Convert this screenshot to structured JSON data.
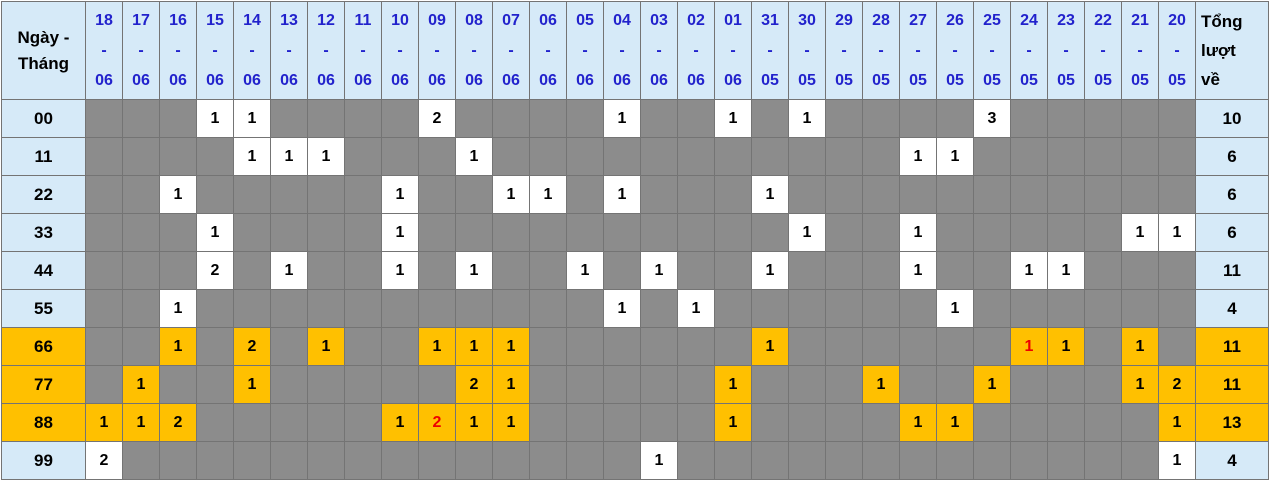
{
  "chart_data": {
    "type": "table",
    "description": "Lottery pair-frequency matrix: occurrences of double numbers 00-99 per date, with red highlighted special hits and per-row totals",
    "corner_label_lines": [
      "Ngày -",
      "Tháng"
    ],
    "total_label_lines": [
      "Tổng",
      "lượt",
      "về"
    ],
    "columns": [
      "18-06",
      "17-06",
      "16-06",
      "15-06",
      "14-06",
      "13-06",
      "12-06",
      "11-06",
      "10-06",
      "09-06",
      "08-06",
      "07-06",
      "06-06",
      "05-06",
      "04-06",
      "03-06",
      "02-06",
      "01-06",
      "31-05",
      "30-05",
      "29-05",
      "28-05",
      "27-05",
      "26-05",
      "25-05",
      "24-05",
      "23-05",
      "22-05",
      "21-05",
      "20-05"
    ],
    "rows": [
      {
        "label": "00",
        "hot": false,
        "total": "10",
        "cells": [
          null,
          null,
          null,
          "1",
          "1",
          null,
          null,
          null,
          null,
          "2",
          null,
          null,
          null,
          null,
          "1",
          null,
          null,
          "1",
          null,
          "1",
          null,
          null,
          null,
          null,
          "3",
          null,
          null,
          null,
          null,
          null
        ]
      },
      {
        "label": "11",
        "hot": false,
        "total": "6",
        "cells": [
          null,
          null,
          null,
          null,
          "1",
          "1",
          "1",
          null,
          null,
          null,
          "1",
          null,
          null,
          null,
          null,
          null,
          null,
          null,
          null,
          null,
          null,
          null,
          "1",
          "1",
          null,
          null,
          null,
          null,
          null,
          null
        ]
      },
      {
        "label": "22",
        "hot": false,
        "total": "6",
        "cells": [
          null,
          null,
          "1",
          null,
          null,
          null,
          null,
          null,
          "1",
          null,
          null,
          "1",
          "1",
          null,
          "1",
          null,
          null,
          null,
          "1",
          null,
          null,
          null,
          null,
          null,
          null,
          null,
          null,
          null,
          null,
          null
        ]
      },
      {
        "label": "33",
        "hot": false,
        "total": "6",
        "cells": [
          null,
          null,
          null,
          "1",
          null,
          null,
          null,
          null,
          "1",
          null,
          null,
          null,
          null,
          null,
          null,
          null,
          null,
          null,
          null,
          "1",
          null,
          null,
          "1",
          null,
          null,
          null,
          null,
          null,
          "1",
          "1"
        ]
      },
      {
        "label": "44",
        "hot": false,
        "total": "11",
        "cells": [
          null,
          null,
          null,
          "2",
          null,
          "1",
          null,
          null,
          "1",
          null,
          "1",
          null,
          null,
          "1",
          null,
          "1",
          null,
          null,
          "1",
          null,
          null,
          null,
          "1",
          null,
          null,
          "1",
          "1",
          null,
          null,
          null
        ]
      },
      {
        "label": "55",
        "hot": false,
        "total": "4",
        "cells": [
          null,
          null,
          "1",
          null,
          null,
          null,
          null,
          null,
          null,
          null,
          null,
          null,
          null,
          null,
          "1",
          null,
          "1",
          null,
          null,
          null,
          null,
          null,
          null,
          "1",
          null,
          null,
          null,
          null,
          null,
          null
        ]
      },
      {
        "label": "66",
        "hot": true,
        "total": "11",
        "cells": [
          null,
          null,
          "1",
          null,
          "2",
          null,
          "1",
          null,
          null,
          "1",
          "1",
          "1",
          null,
          null,
          null,
          null,
          null,
          null,
          "1",
          null,
          null,
          null,
          null,
          null,
          null,
          {
            "v": "1",
            "red": true
          },
          "1",
          null,
          "1",
          null
        ]
      },
      {
        "label": "77",
        "hot": true,
        "total": "11",
        "cells": [
          null,
          "1",
          null,
          null,
          "1",
          null,
          null,
          null,
          null,
          null,
          "2",
          "1",
          null,
          null,
          null,
          null,
          null,
          "1",
          null,
          null,
          null,
          "1",
          null,
          null,
          "1",
          null,
          null,
          null,
          "1",
          "2"
        ]
      },
      {
        "label": "88",
        "hot": true,
        "total": "13",
        "cells": [
          "1",
          "1",
          "2",
          null,
          null,
          null,
          null,
          null,
          "1",
          {
            "v": "2",
            "red": true
          },
          "1",
          "1",
          null,
          null,
          null,
          null,
          null,
          "1",
          null,
          null,
          null,
          null,
          "1",
          "1",
          null,
          null,
          null,
          null,
          null,
          "1"
        ]
      },
      {
        "label": "99",
        "hot": false,
        "total": "4",
        "cells": [
          "2",
          null,
          null,
          null,
          null,
          null,
          null,
          null,
          null,
          null,
          null,
          null,
          null,
          null,
          null,
          "1",
          null,
          null,
          null,
          null,
          null,
          null,
          null,
          null,
          null,
          null,
          null,
          null,
          null,
          "1"
        ]
      }
    ]
  },
  "colors": {
    "header_bg": "#d6eaf8",
    "header_text": "#2222cc",
    "empty_cell_bg": "#8c8c8c",
    "filled_cell_bg": "#ffffff",
    "hot_row_bg": "#ffc000",
    "red_highlight_text": "#ee0000",
    "grid_line": "#747474",
    "text": "#000000"
  }
}
